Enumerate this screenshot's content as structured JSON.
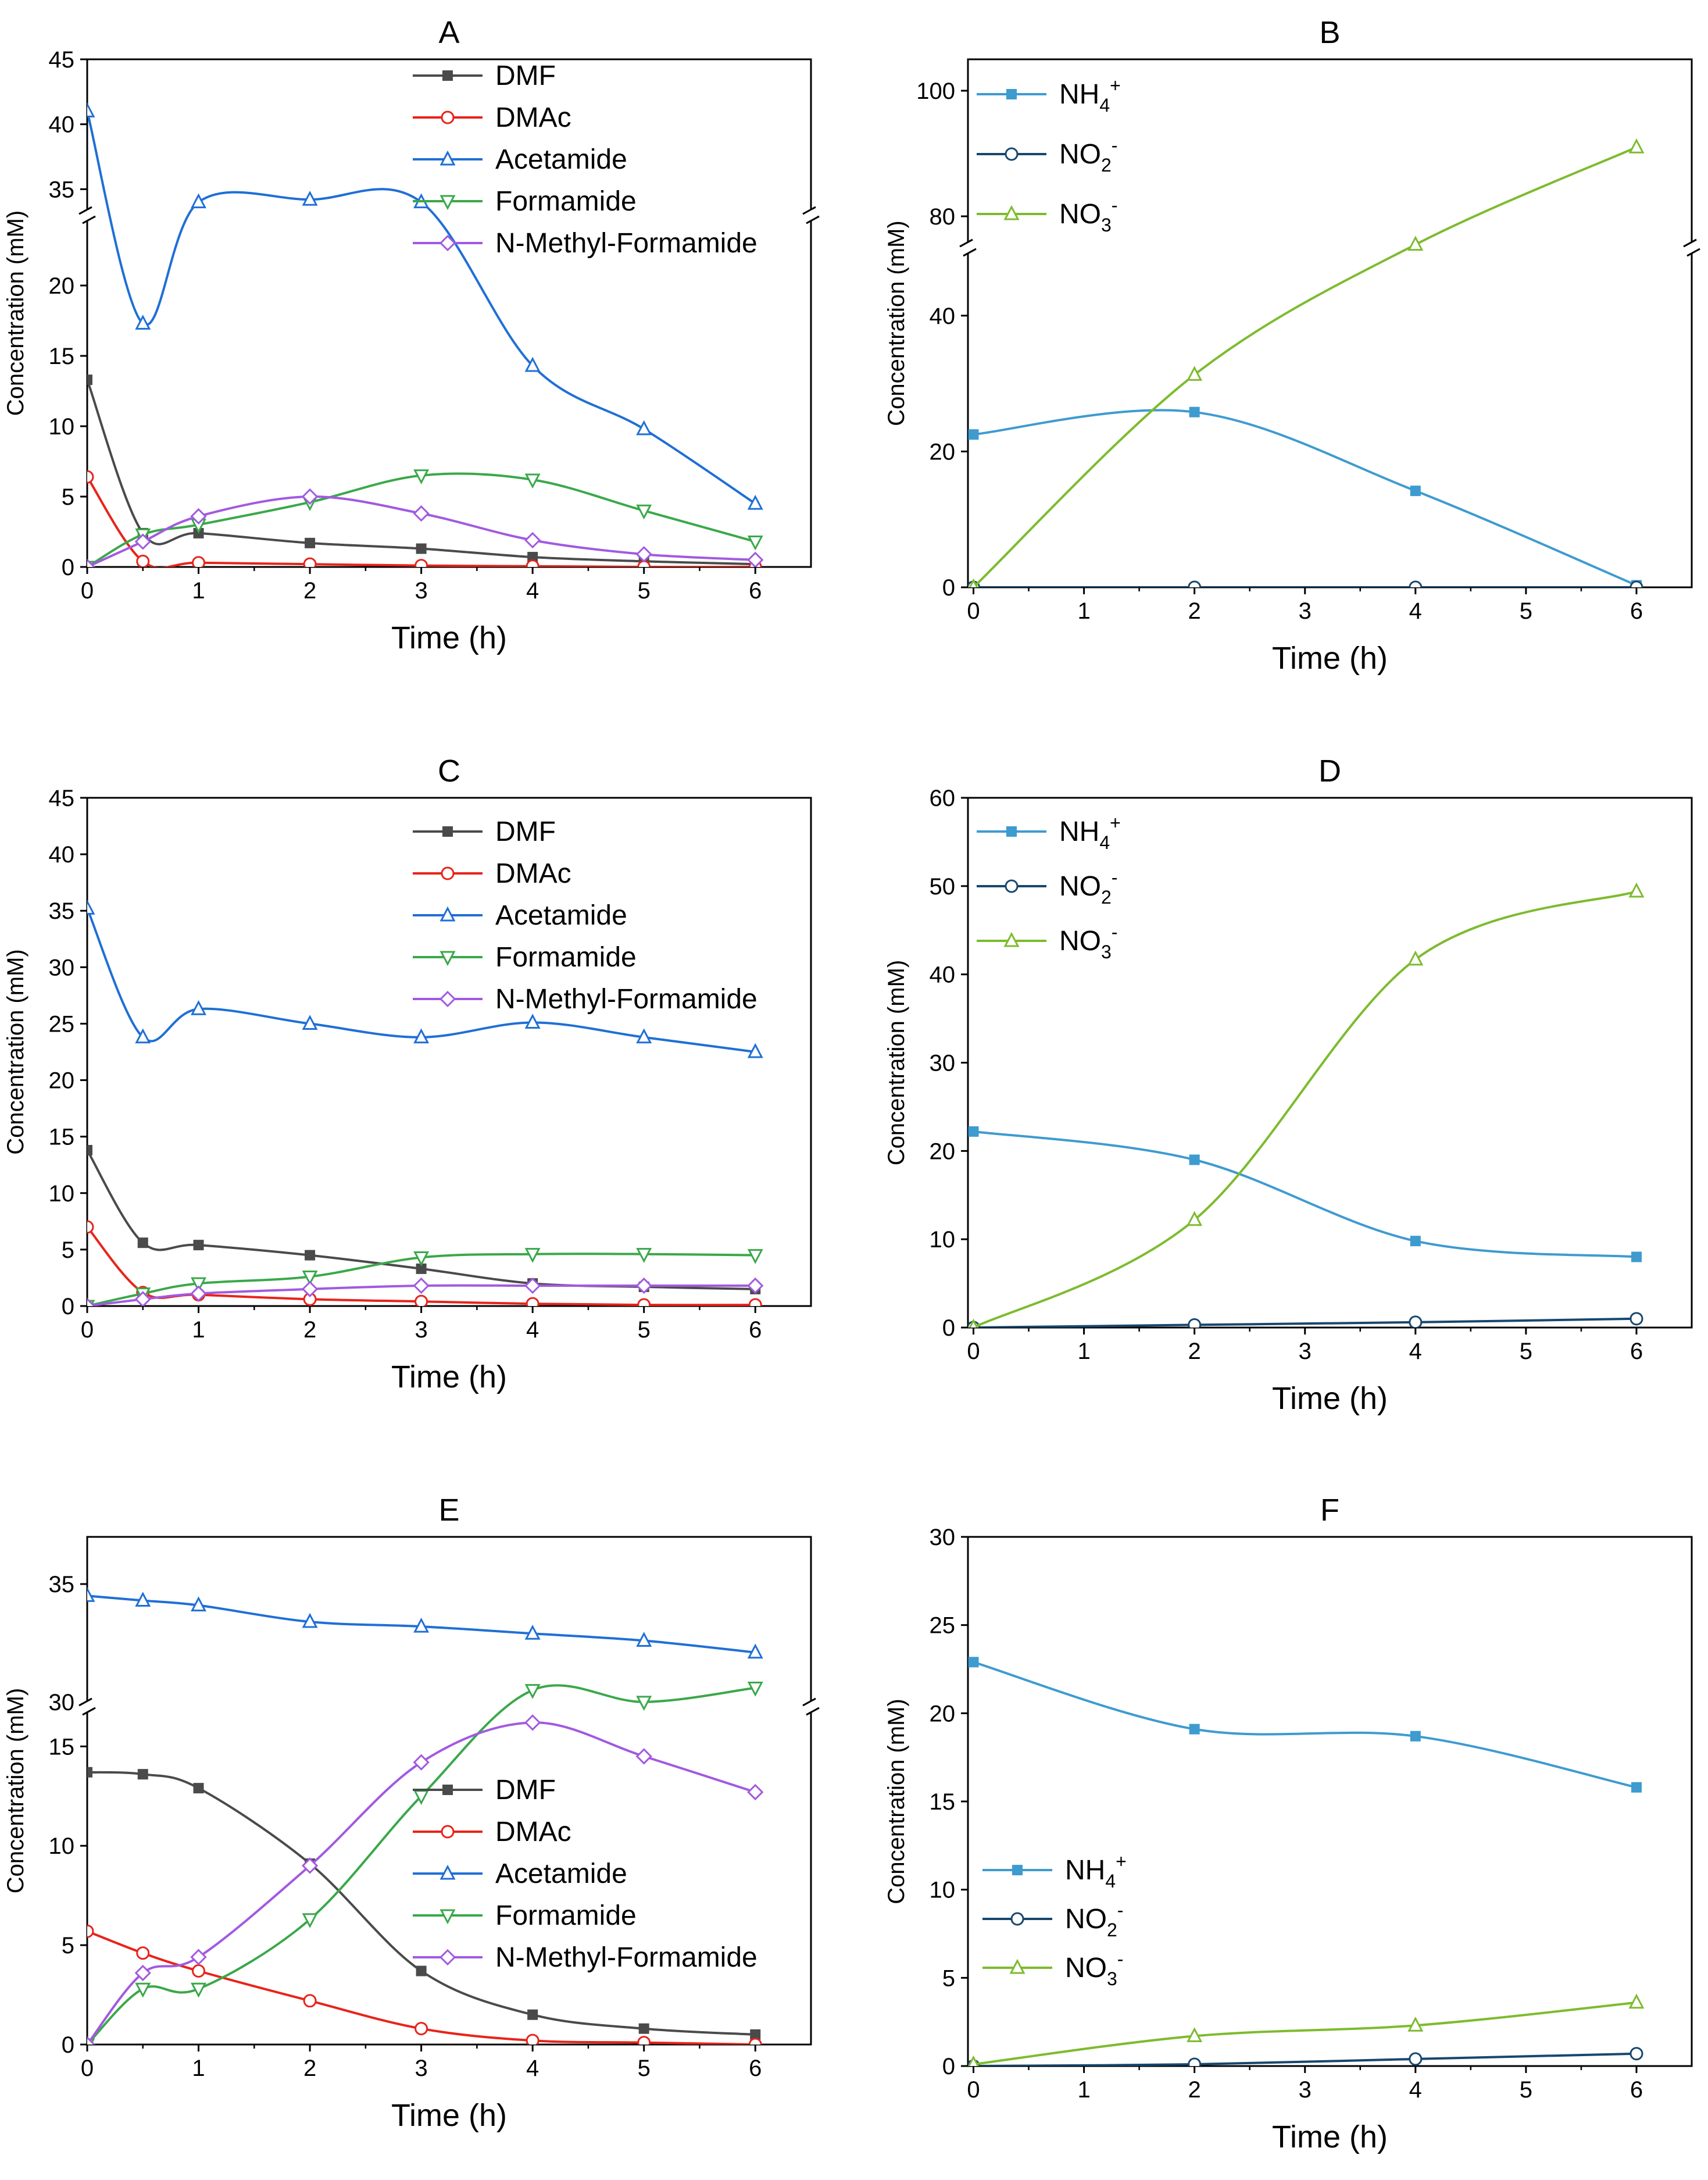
{
  "chart_data": [
    {
      "type": "line",
      "title": "A",
      "xlabel": "Time (h)",
      "ylabel": "Concentration (mM)",
      "xlim": [
        0,
        6.5
      ],
      "xticks": [
        "0",
        "1",
        "2",
        "3",
        "4",
        "5",
        "6"
      ],
      "yticks": [
        "0",
        "5",
        "10",
        "15",
        "20",
        "35",
        "40",
        "45"
      ],
      "axis_break": {
        "lower": [
          0,
          25
        ],
        "upper": [
          33,
          45
        ]
      },
      "legend_position": "top-center",
      "series": [
        {
          "name": "DMF",
          "marker": "square-filled",
          "color": "#4a4a4a",
          "x": [
            0,
            0.5,
            1,
            2,
            3,
            4,
            5,
            6
          ],
          "values": [
            13.3,
            2.4,
            2.4,
            1.7,
            1.3,
            0.7,
            0.4,
            0.2
          ]
        },
        {
          "name": "DMAc",
          "marker": "circle-open",
          "color": "#e8231a",
          "x": [
            0,
            0.5,
            1,
            2,
            3,
            4,
            5,
            6
          ],
          "values": [
            6.4,
            0.4,
            0.3,
            0.2,
            0.1,
            0.05,
            0.0,
            0.0
          ]
        },
        {
          "name": "Acetamide",
          "marker": "triangle-up-open",
          "color": "#1f6fd6",
          "x": [
            0,
            0.5,
            1,
            2,
            3,
            4,
            5,
            6
          ],
          "values": [
            41.0,
            17.3,
            34.0,
            34.2,
            34.0,
            14.3,
            9.8,
            4.5
          ]
        },
        {
          "name": "Formamide",
          "marker": "triangle-down-open",
          "color": "#3aa84a",
          "x": [
            0,
            0.5,
            1,
            2,
            3,
            4,
            5,
            6
          ],
          "values": [
            0,
            2.3,
            3.0,
            4.6,
            6.5,
            6.2,
            4.0,
            1.8
          ]
        },
        {
          "name": "N-Methyl-Formamide",
          "marker": "diamond-open",
          "color": "#a259e0",
          "x": [
            0,
            0.5,
            1,
            2,
            3,
            4,
            5,
            6
          ],
          "values": [
            0,
            1.8,
            3.6,
            5.0,
            3.8,
            1.9,
            0.9,
            0.5
          ]
        }
      ]
    },
    {
      "type": "line",
      "title": "B",
      "xlabel": "Time (h)",
      "ylabel": "Concentration (mM)",
      "xlim": [
        -0.05,
        6.5
      ],
      "xticks": [
        "0",
        "1",
        "2",
        "3",
        "4",
        "5",
        "6"
      ],
      "yticks": [
        "0",
        "20",
        "40",
        "80",
        "100"
      ],
      "axis_break": {
        "lower": [
          0,
          50
        ],
        "upper": [
          75,
          105
        ]
      },
      "legend_position": "top-left",
      "series": [
        {
          "name": "NH4+",
          "label_main": "NH",
          "label_sub": "4",
          "label_sup": "+",
          "marker": "square-filled",
          "color": "#3e9bd0",
          "x": [
            0,
            2,
            4,
            6
          ],
          "values": [
            22.5,
            25.8,
            14.2,
            0.3
          ]
        },
        {
          "name": "NO2-",
          "label_main": "NO",
          "label_sub": "2",
          "label_sup": "-",
          "marker": "circle-open",
          "color": "#17476e",
          "x": [
            0,
            2,
            4,
            6
          ],
          "values": [
            0,
            0,
            0,
            0
          ]
        },
        {
          "name": "NO3-",
          "label_main": "NO",
          "label_sub": "3",
          "label_sup": "-",
          "marker": "triangle-up-open",
          "color": "#7dbb2e",
          "x": [
            0,
            2,
            4,
            6
          ],
          "values": [
            0,
            31.3,
            75.5,
            91.0
          ]
        }
      ]
    },
    {
      "type": "line",
      "title": "C",
      "xlabel": "Time (h)",
      "ylabel": "Concentration (mM)",
      "xlim": [
        0,
        6.5
      ],
      "ylim": [
        0,
        45
      ],
      "xticks": [
        "0",
        "1",
        "2",
        "3",
        "4",
        "5",
        "6"
      ],
      "yticks": [
        "0",
        "5",
        "10",
        "15",
        "20",
        "25",
        "30",
        "35",
        "40",
        "45"
      ],
      "legend_position": "top-center",
      "series": [
        {
          "name": "DMF",
          "marker": "square-filled",
          "color": "#4a4a4a",
          "x": [
            0,
            0.5,
            1,
            2,
            3,
            4,
            5,
            6
          ],
          "values": [
            13.8,
            5.6,
            5.4,
            4.5,
            3.3,
            2.0,
            1.7,
            1.5
          ]
        },
        {
          "name": "DMAc",
          "marker": "circle-open",
          "color": "#e8231a",
          "x": [
            0,
            0.5,
            1,
            2,
            3,
            4,
            5,
            6
          ],
          "values": [
            7.0,
            1.2,
            1.0,
            0.6,
            0.4,
            0.2,
            0.1,
            0.1
          ]
        },
        {
          "name": "Acetamide",
          "marker": "triangle-up-open",
          "color": "#1f6fd6",
          "x": [
            0,
            0.5,
            1,
            2,
            3,
            4,
            5,
            6
          ],
          "values": [
            35.2,
            23.8,
            26.3,
            25.0,
            23.8,
            25.1,
            23.8,
            22.5
          ]
        },
        {
          "name": "Formamide",
          "marker": "triangle-down-open",
          "color": "#3aa84a",
          "x": [
            0,
            0.5,
            1,
            2,
            3,
            4,
            5,
            6
          ],
          "values": [
            0,
            1.1,
            2.0,
            2.6,
            4.3,
            4.6,
            4.6,
            4.5
          ]
        },
        {
          "name": "N-Methyl-Formamide",
          "marker": "diamond-open",
          "color": "#a259e0",
          "x": [
            0,
            0.5,
            1,
            2,
            3,
            4,
            5,
            6
          ],
          "values": [
            0,
            0.6,
            1.1,
            1.5,
            1.8,
            1.8,
            1.8,
            1.8
          ]
        }
      ]
    },
    {
      "type": "line",
      "title": "D",
      "xlabel": "Time (h)",
      "ylabel": "Concentration (mM)",
      "xlim": [
        -0.05,
        6.5
      ],
      "ylim": [
        0,
        60
      ],
      "xticks": [
        "0",
        "1",
        "2",
        "3",
        "4",
        "5",
        "6"
      ],
      "yticks": [
        "0",
        "10",
        "20",
        "30",
        "40",
        "50",
        "60"
      ],
      "legend_position": "top-left",
      "series": [
        {
          "name": "NH4+",
          "label_main": "NH",
          "label_sub": "4",
          "label_sup": "+",
          "marker": "square-filled",
          "color": "#3e9bd0",
          "x": [
            0,
            2,
            4,
            6
          ],
          "values": [
            22.2,
            19.0,
            9.8,
            8.0
          ]
        },
        {
          "name": "NO2-",
          "label_main": "NO",
          "label_sub": "2",
          "label_sup": "-",
          "marker": "circle-open",
          "color": "#17476e",
          "x": [
            0,
            2,
            4,
            6
          ],
          "values": [
            0,
            0.3,
            0.6,
            1.0
          ]
        },
        {
          "name": "NO3-",
          "label_main": "NO",
          "label_sub": "3",
          "label_sup": "-",
          "marker": "triangle-up-open",
          "color": "#7dbb2e",
          "x": [
            0,
            2,
            4,
            6
          ],
          "values": [
            0,
            12.2,
            41.7,
            49.4
          ]
        }
      ]
    },
    {
      "type": "line",
      "title": "E",
      "xlabel": "Time (h)",
      "ylabel": "Concentration (mM)",
      "xlim": [
        0,
        6.5
      ],
      "xticks": [
        "0",
        "1",
        "2",
        "3",
        "4",
        "5",
        "6"
      ],
      "yticks": [
        "0",
        "5",
        "10",
        "15",
        "30",
        "35"
      ],
      "axis_break": {
        "lower": [
          0,
          17
        ],
        "upper": [
          29.8,
          37
        ]
      },
      "legend_position": "center-right",
      "series": [
        {
          "name": "DMF",
          "marker": "square-filled",
          "color": "#4a4a4a",
          "x": [
            0,
            0.5,
            1,
            2,
            3,
            4,
            5,
            6
          ],
          "values": [
            13.7,
            13.6,
            12.9,
            9.1,
            3.7,
            1.5,
            0.8,
            0.5
          ]
        },
        {
          "name": "DMAc",
          "marker": "circle-open",
          "color": "#e8231a",
          "x": [
            0,
            0.5,
            1,
            2,
            3,
            4,
            5,
            6
          ],
          "values": [
            5.7,
            4.6,
            3.7,
            2.2,
            0.8,
            0.2,
            0.1,
            0.0
          ]
        },
        {
          "name": "Acetamide",
          "marker": "triangle-up-open",
          "color": "#1f6fd6",
          "x": [
            0,
            0.5,
            1,
            2,
            3,
            4,
            5,
            6
          ],
          "values": [
            34.5,
            34.3,
            34.1,
            33.4,
            33.2,
            32.9,
            32.6,
            32.1
          ]
        },
        {
          "name": "Formamide",
          "marker": "triangle-down-open",
          "color": "#3aa84a",
          "x": [
            0,
            0.5,
            1,
            2,
            3,
            4,
            5,
            6
          ],
          "values": [
            0,
            2.8,
            2.8,
            6.3,
            12.5,
            30.5,
            30.0,
            30.6
          ]
        },
        {
          "name": "N-Methyl-Formamide",
          "marker": "diamond-open",
          "color": "#a259e0",
          "x": [
            0,
            0.5,
            1,
            2,
            3,
            4,
            5,
            6
          ],
          "values": [
            0,
            3.6,
            4.4,
            9.0,
            14.2,
            16.2,
            14.5,
            12.7
          ]
        }
      ]
    },
    {
      "type": "line",
      "title": "F",
      "xlabel": "Time (h)",
      "ylabel": "Concentration (mM)",
      "xlim": [
        -0.05,
        6.5
      ],
      "ylim": [
        0,
        30
      ],
      "xticks": [
        "0",
        "1",
        "2",
        "3",
        "4",
        "5",
        "6"
      ],
      "yticks": [
        "0",
        "5",
        "10",
        "15",
        "20",
        "25",
        "30"
      ],
      "legend_position": "bottom-left",
      "series": [
        {
          "name": "NH4+",
          "label_main": "NH",
          "label_sub": "4",
          "label_sup": "+",
          "marker": "square-filled",
          "color": "#3e9bd0",
          "x": [
            0,
            2,
            4,
            6
          ],
          "values": [
            22.9,
            19.1,
            18.7,
            15.8
          ]
        },
        {
          "name": "NO2-",
          "label_main": "NO",
          "label_sub": "2",
          "label_sup": "-",
          "marker": "circle-open",
          "color": "#17476e",
          "x": [
            0,
            2,
            4,
            6
          ],
          "values": [
            0,
            0.1,
            0.4,
            0.7
          ]
        },
        {
          "name": "NO3-",
          "label_main": "NO",
          "label_sub": "3",
          "label_sup": "-",
          "marker": "triangle-up-open",
          "color": "#7dbb2e",
          "x": [
            0,
            2,
            4,
            6
          ],
          "values": [
            0.1,
            1.7,
            2.3,
            3.6
          ]
        }
      ]
    }
  ]
}
